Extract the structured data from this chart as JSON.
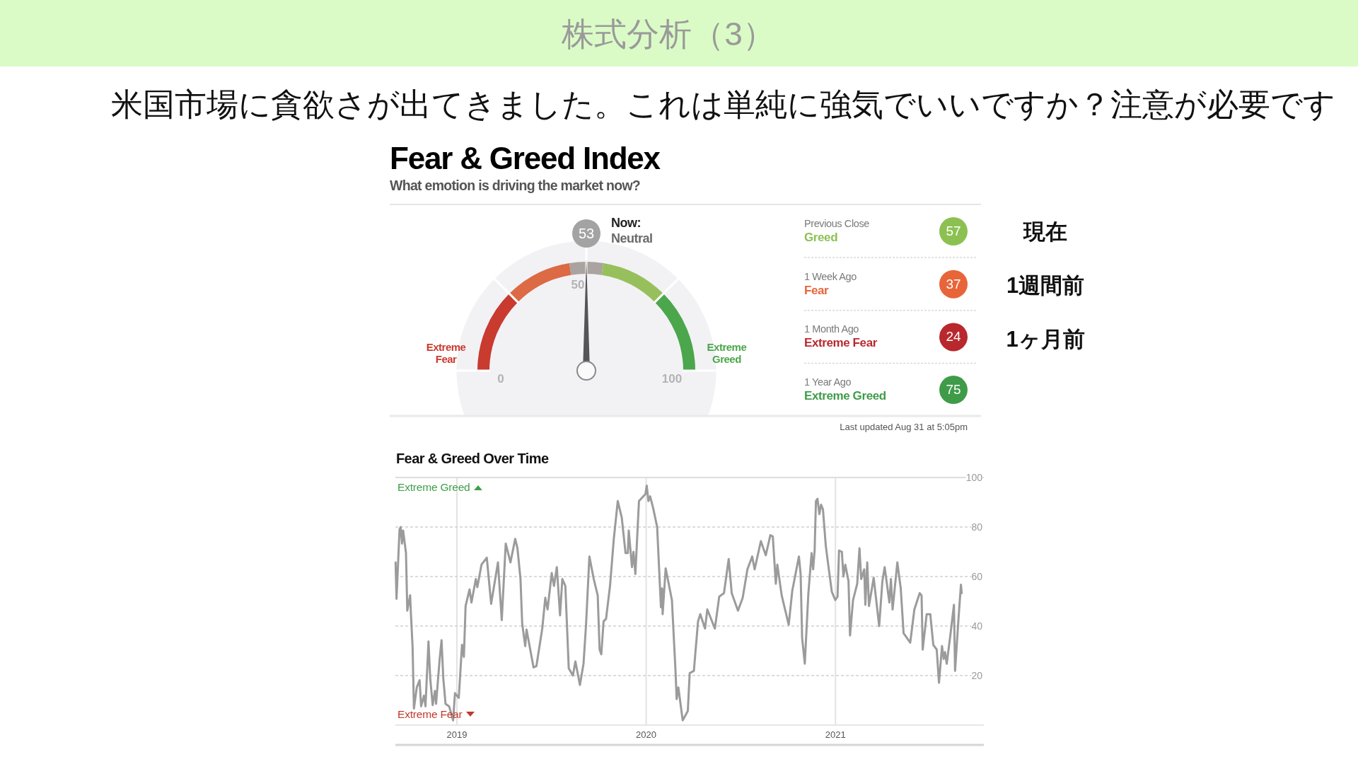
{
  "chart_data": [
    {
      "type": "donut",
      "title": "Fear & Greed Index",
      "subtitle": "What emotion is driving the market now?",
      "categories": [
        "Extreme Fear",
        null,
        "Neutral",
        null,
        "Extreme Greed"
      ],
      "values": [
        25,
        20,
        10,
        20,
        25
      ],
      "colors": [
        "#c93a2f",
        "#dc6a44",
        "#aaa39f",
        "#97c05c",
        "#4ca64c"
      ],
      "needle": "Neutral",
      "annotations": [
        "株式分析（3）",
        "米国市場に貪欲さが出てきました。これは単純に強気でいいですか？注意が必要です",
        "53",
        "Now:",
        "0",
        "50",
        "100"
      ]
    },
    {
      "type": "other",
      "categories": [
        "Previous Close",
        "1 Week Ago",
        "1 Month Ago",
        "1 Year Ago"
      ],
      "values": [
        57,
        37,
        24,
        75
      ],
      "colors": [
        "#8cc152",
        "#e8653a",
        "#b8282d",
        "#3f9b48"
      ],
      "data_labels": true,
      "annotations": [
        "Greed",
        "Fear",
        "Extreme Fear",
        "Extreme Greed",
        "現在",
        "1週間前",
        "1ヶ月前",
        "Last updated Aug 31 at 5:05pm"
      ]
    },
    {
      "type": "line",
      "title": "Fear & Greed Over Time",
      "color": "#9b9b9b",
      "xlim": [
        2018.675,
        2021.784
      ],
      "xticks": [
        2019,
        2020,
        2021
      ],
      "ylim": [
        0,
        100
      ],
      "yticks": [
        20,
        40,
        60,
        80,
        100
      ],
      "grid": true,
      "annotations": [
        "Extreme Greed",
        "Extreme Fear"
      ],
      "x": [
        2018.676,
        2018.681,
        2018.697,
        2018.703,
        2018.71,
        2018.716,
        2018.731,
        2018.738,
        2018.753,
        2018.757,
        2018.766,
        2018.773,
        2018.788,
        2018.803,
        2018.811,
        2018.826,
        2018.834,
        2018.85,
        2018.859,
        2018.872,
        2018.884,
        2018.89,
        2018.909,
        2018.919,
        2018.928,
        2018.94,
        2018.959,
        2018.98,
        2018.99,
        2019.01,
        2019.027,
        2019.037,
        2019.046,
        2019.067,
        2019.077,
        2019.1,
        2019.108,
        2019.13,
        2019.158,
        2019.181,
        2019.217,
        2019.237,
        2019.258,
        2019.283,
        2019.308,
        2019.32,
        2019.336,
        2019.345,
        2019.361,
        2019.368,
        2019.405,
        2019.42,
        2019.451,
        2019.467,
        2019.479,
        2019.501,
        2019.513,
        2019.528,
        2019.545,
        2019.557,
        2019.573,
        2019.591,
        2019.613,
        2019.626,
        2019.65,
        2019.669,
        2019.682,
        2019.7,
        2019.723,
        2019.744,
        2019.754,
        2019.763,
        2019.775,
        2019.788,
        2019.809,
        2019.829,
        2019.85,
        2019.871,
        2019.891,
        2019.903,
        2019.908,
        2019.925,
        2019.933,
        2019.943,
        2019.962,
        2019.996,
        2020.003,
        2020.012,
        2020.021,
        2020.037,
        2020.058,
        2020.078,
        2020.084,
        2020.087,
        2020.103,
        2020.136,
        2020.155,
        2020.161,
        2020.17,
        2020.193,
        2020.22,
        2020.23,
        2020.252,
        2020.274,
        2020.286,
        2020.311,
        2020.323,
        2020.363,
        2020.386,
        2020.411,
        2020.436,
        2020.452,
        2020.485,
        2020.51,
        2020.535,
        2020.56,
        2020.573,
        2020.606,
        2020.632,
        2020.656,
        2020.669,
        2020.685,
        2020.693,
        2020.716,
        2020.753,
        2020.772,
        2020.784,
        2020.807,
        2020.816,
        2020.824,
        2020.838,
        2020.857,
        2020.874,
        2020.882,
        2020.89,
        2020.897,
        2020.905,
        2020.915,
        2020.924,
        2020.934,
        2020.949,
        2020.965,
        2020.981,
        2020.999,
        2021.011,
        2021.019,
        2021.034,
        2021.042,
        2021.052,
        2021.069,
        2021.077,
        2021.093,
        2021.115,
        2021.127,
        2021.136,
        2021.152,
        2021.158,
        2021.168,
        2021.177,
        2021.202,
        2021.231,
        2021.248,
        2021.26,
        2021.285,
        2021.293,
        2021.302,
        2021.327,
        2021.345,
        2021.36,
        2021.395,
        2021.417,
        2021.445,
        2021.455,
        2021.461,
        2021.482,
        2021.501,
        2021.517,
        2021.535,
        2021.547,
        2021.563,
        2021.572,
        2021.579,
        2021.588,
        2021.607,
        2021.626,
        2021.632,
        2021.65,
        2021.663,
        2021.667
      ],
      "values": [
        65.7,
        51.0,
        79.0,
        80.0,
        73.3,
        78.6,
        69.5,
        46.2,
        52.4,
        45.2,
        31.4,
        6.7,
        15.2,
        18.1,
        7.6,
        11.9,
        7.6,
        33.8,
        19.0,
        8.1,
        13.8,
        8.6,
        26.7,
        34.3,
        19.0,
        8.6,
        7.6,
        1.9,
        12.9,
        11.0,
        32.4,
        27.6,
        48.1,
        54.8,
        49.5,
        59.0,
        55.7,
        64.8,
        67.6,
        49.0,
        65.7,
        42.4,
        73.3,
        65.7,
        75.2,
        71.4,
        59.0,
        41.0,
        31.9,
        38.6,
        23.3,
        23.8,
        39.0,
        51.4,
        46.7,
        61.4,
        56.2,
        63.8,
        44.3,
        59.0,
        56.2,
        22.9,
        20.0,
        25.7,
        16.2,
        24.8,
        40.0,
        68.1,
        59.0,
        52.4,
        30.5,
        28.6,
        41.9,
        42.9,
        56.2,
        75.2,
        90.5,
        83.8,
        69.5,
        69.5,
        78.6,
        63.8,
        70.0,
        61.0,
        90.5,
        93.3,
        96.7,
        90.5,
        92.4,
        87.6,
        80.0,
        47.6,
        55.2,
        44.8,
        63.3,
        50.5,
        21.9,
        10.5,
        15.2,
        1.9,
        5.7,
        21.0,
        21.9,
        41.9,
        44.8,
        39.0,
        46.7,
        39.0,
        51.9,
        53.3,
        67.1,
        53.3,
        46.2,
        51.4,
        62.9,
        68.1,
        62.9,
        74.3,
        68.6,
        76.7,
        76.2,
        57.1,
        64.8,
        52.4,
        40.5,
        54.3,
        59.0,
        68.1,
        61.0,
        35.2,
        24.8,
        53.3,
        69.5,
        62.9,
        70.5,
        90.5,
        91.4,
        85.2,
        89.0,
        87.1,
        72.4,
        62.9,
        53.8,
        50.5,
        51.9,
        70.5,
        70.0,
        60.0,
        64.8,
        58.1,
        36.2,
        50.5,
        57.1,
        71.4,
        59.0,
        62.9,
        48.6,
        65.7,
        48.1,
        59.5,
        40.0,
        58.1,
        63.8,
        49.5,
        59.0,
        46.7,
        65.7,
        55.2,
        37.1,
        33.3,
        46.7,
        53.3,
        52.4,
        30.5,
        44.8,
        44.8,
        32.4,
        30.5,
        17.1,
        31.9,
        26.7,
        29.5,
        24.8,
        36.2,
        48.6,
        21.9,
        42.9,
        56.7,
        53.3
      ]
    }
  ]
}
